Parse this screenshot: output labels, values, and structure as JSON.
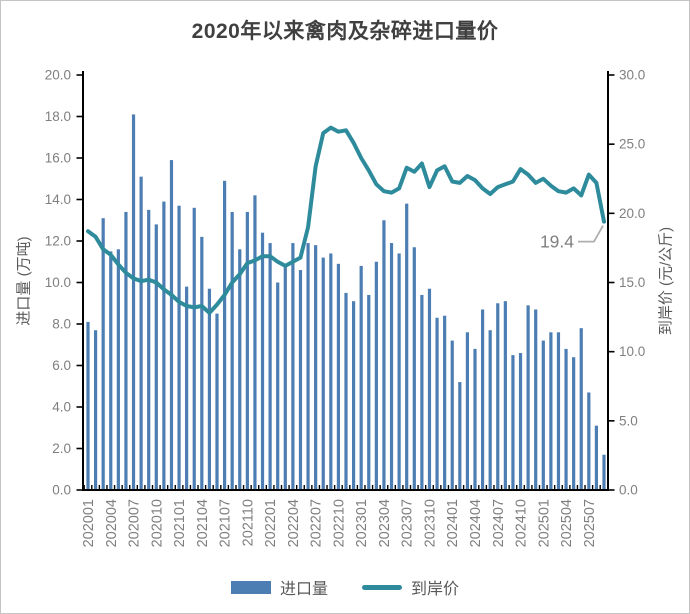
{
  "title": "2020年以来禽肉及杂碎进口量价",
  "legend": {
    "volume_label": "进口量",
    "price_label": "到岸价"
  },
  "colors": {
    "bar": "#4C7DB3",
    "line": "#2E8B9C",
    "title_text": "#404040",
    "tick_text": "#7F7F7F",
    "axis_title_text": "#595959",
    "annotation_text": "#808080",
    "axis_line": "#000000",
    "leader_line": "#AFAFAF"
  },
  "chart_data": {
    "type": "bar+line",
    "title": "2020年以来禽肉及杂碎进口量价",
    "categories": [
      "202001",
      "202002",
      "202003",
      "202004",
      "202005",
      "202006",
      "202007",
      "202008",
      "202009",
      "202010",
      "202011",
      "202012",
      "202101",
      "202102",
      "202103",
      "202104",
      "202105",
      "202106",
      "202107",
      "202108",
      "202109",
      "202110",
      "202111",
      "202112",
      "202201",
      "202202",
      "202203",
      "202204",
      "202205",
      "202206",
      "202207",
      "202208",
      "202209",
      "202210",
      "202211",
      "202212",
      "202301",
      "202302",
      "202303",
      "202304",
      "202305",
      "202306",
      "202307",
      "202308",
      "202309",
      "202310",
      "202311",
      "202312",
      "202401",
      "202402",
      "202403",
      "202404",
      "202405",
      "202406",
      "202407",
      "202408",
      "202409",
      "202410",
      "202411",
      "202412",
      "202501",
      "202502",
      "202503",
      "202504",
      "202505",
      "202506",
      "202507",
      "202508",
      "202509"
    ],
    "x_tick_labels": [
      "202001",
      "202004",
      "202007",
      "202010",
      "202101",
      "202104",
      "202107",
      "202110",
      "202201",
      "202204",
      "202207",
      "202210",
      "202301",
      "202304",
      "202307",
      "202310",
      "202401",
      "202404",
      "202407",
      "202410",
      "202501",
      "202504",
      "202507"
    ],
    "x_tick_every": 3,
    "series": [
      {
        "name": "进口量",
        "type": "bar",
        "axis": "left",
        "color": "#4C7DB3",
        "values": [
          8.1,
          7.7,
          13.1,
          11.5,
          11.6,
          13.4,
          18.1,
          15.1,
          13.5,
          12.8,
          13.9,
          15.9,
          13.7,
          9.8,
          13.6,
          12.2,
          9.7,
          8.5,
          14.9,
          13.4,
          11.6,
          13.4,
          14.2,
          12.4,
          11.9,
          10.0,
          10.9,
          11.9,
          10.6,
          11.9,
          11.8,
          11.2,
          11.4,
          10.9,
          9.5,
          9.1,
          10.8,
          9.4,
          11.0,
          13.0,
          11.9,
          11.4,
          13.8,
          11.7,
          9.4,
          9.7,
          8.3,
          8.4,
          7.2,
          5.2,
          7.6,
          6.8,
          8.7,
          7.7,
          9.0,
          9.1,
          6.5,
          6.6,
          8.9,
          8.7,
          7.2,
          7.6,
          7.6,
          6.8,
          6.4,
          7.8,
          4.7,
          3.1,
          1.7
        ]
      },
      {
        "name": "到岸价",
        "type": "line",
        "axis": "right",
        "color": "#2E8B9C",
        "values": [
          18.7,
          18.3,
          17.4,
          17.0,
          16.3,
          15.7,
          15.3,
          15.1,
          15.2,
          15.0,
          14.5,
          14.1,
          13.6,
          13.3,
          13.2,
          13.3,
          12.8,
          13.4,
          14.1,
          15.0,
          15.6,
          16.4,
          16.6,
          16.9,
          16.9,
          16.5,
          16.2,
          16.5,
          16.8,
          19.0,
          23.4,
          25.8,
          26.2,
          25.9,
          26.0,
          25.1,
          24.0,
          23.1,
          22.1,
          21.6,
          21.5,
          21.8,
          23.3,
          23.0,
          23.6,
          21.9,
          23.1,
          23.4,
          22.3,
          22.2,
          22.7,
          22.4,
          21.8,
          21.4,
          21.9,
          22.1,
          22.3,
          23.2,
          22.8,
          22.2,
          22.5,
          22.0,
          21.6,
          21.5,
          21.8,
          21.3,
          22.8,
          22.2,
          19.4
        ]
      }
    ],
    "left_axis": {
      "label": "进口量 (万吨)",
      "min": 0,
      "max": 20,
      "step": 2,
      "tick_format": "one_decimal"
    },
    "right_axis": {
      "label": "到岸价 (元/公斤)",
      "min": 0,
      "max": 30,
      "step": 5,
      "tick_format": "one_decimal"
    },
    "annotation": {
      "text": "19.4",
      "series": "到岸价",
      "category": "202509"
    },
    "grid": false,
    "legend_position": "bottom"
  }
}
